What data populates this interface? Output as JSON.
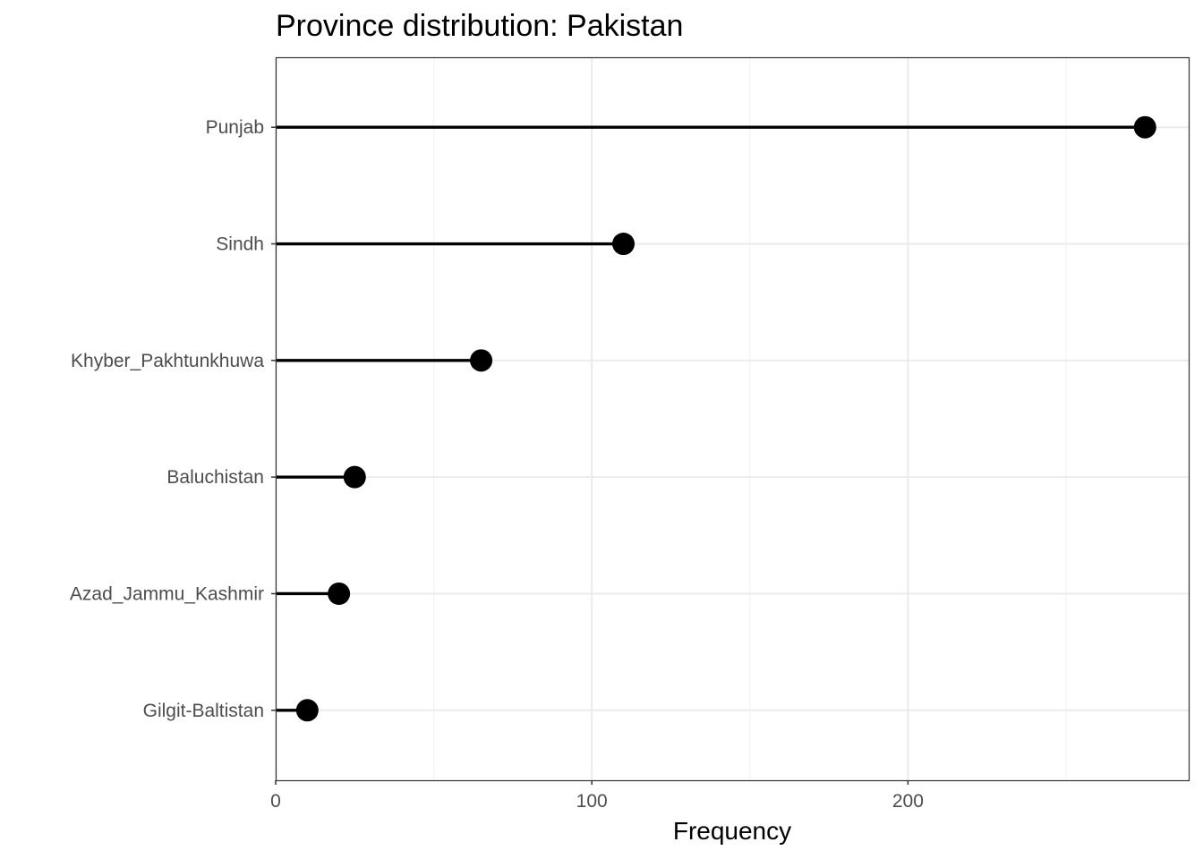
{
  "chart_data": {
    "type": "lollipop",
    "title": "Province distribution: Pakistan",
    "xlabel": "Frequency",
    "ylabel": "",
    "categories": [
      "Punjab",
      "Sindh",
      "Khyber_Pakhtunkhuwa",
      "Baluchistan",
      "Azad_Jammu_Kashmir",
      "Gilgit-Baltistan"
    ],
    "values": [
      275,
      110,
      65,
      25,
      20,
      10
    ],
    "xlim": [
      0,
      288.8
    ],
    "x_ticks": [
      0,
      100,
      200
    ],
    "x_minor_ticks": [
      50,
      150,
      250
    ],
    "grid": true,
    "theme": "bw",
    "colors": {
      "mark": "#000000",
      "grid_major": "#ebebeb",
      "grid_minor": "#f4f4f4",
      "panel_border": "#333333"
    }
  }
}
